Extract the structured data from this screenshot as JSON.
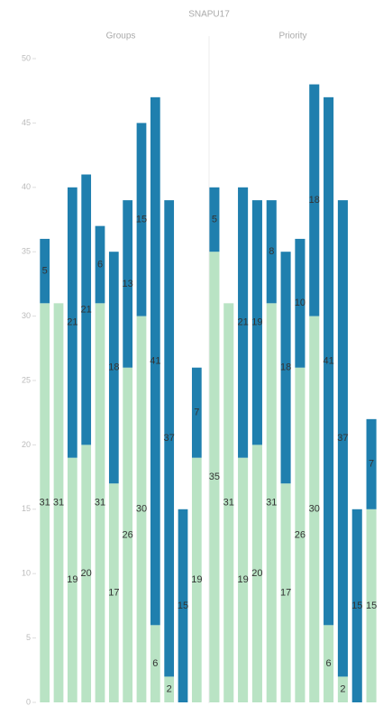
{
  "chart_data": [
    {
      "type": "bar",
      "stacked": true,
      "title": "SNAPU17",
      "panel": "Groups",
      "categories": [
        null,
        null,
        null,
        null,
        null,
        null,
        null,
        null,
        null,
        null,
        null,
        null
      ],
      "series": [
        {
          "color": "#b9e3c4",
          "values": [
            31,
            31,
            19,
            20,
            31,
            17,
            26,
            30,
            6,
            2,
            null,
            19
          ]
        },
        {
          "color": "#1f7fae",
          "values": [
            5,
            null,
            21,
            21,
            6,
            18,
            13,
            15,
            41,
            37,
            15,
            7
          ]
        }
      ],
      "ylim": [
        0,
        50
      ],
      "yticks": [
        0,
        5,
        10,
        15,
        20,
        25,
        30,
        35,
        40,
        45,
        50
      ]
    },
    {
      "type": "bar",
      "stacked": true,
      "panel": "Priority",
      "categories": [
        null,
        null,
        null,
        null,
        null,
        null,
        null,
        null,
        null,
        null,
        null,
        null
      ],
      "series": [
        {
          "color": "#b9e3c4",
          "values": [
            35,
            31,
            19,
            20,
            31,
            17,
            26,
            30,
            6,
            2,
            null,
            15
          ]
        },
        {
          "color": "#1f7fae",
          "values": [
            5,
            null,
            21,
            19,
            8,
            18,
            10,
            18,
            41,
            37,
            15,
            7
          ]
        }
      ],
      "ylim": [
        0,
        50
      ]
    }
  ]
}
